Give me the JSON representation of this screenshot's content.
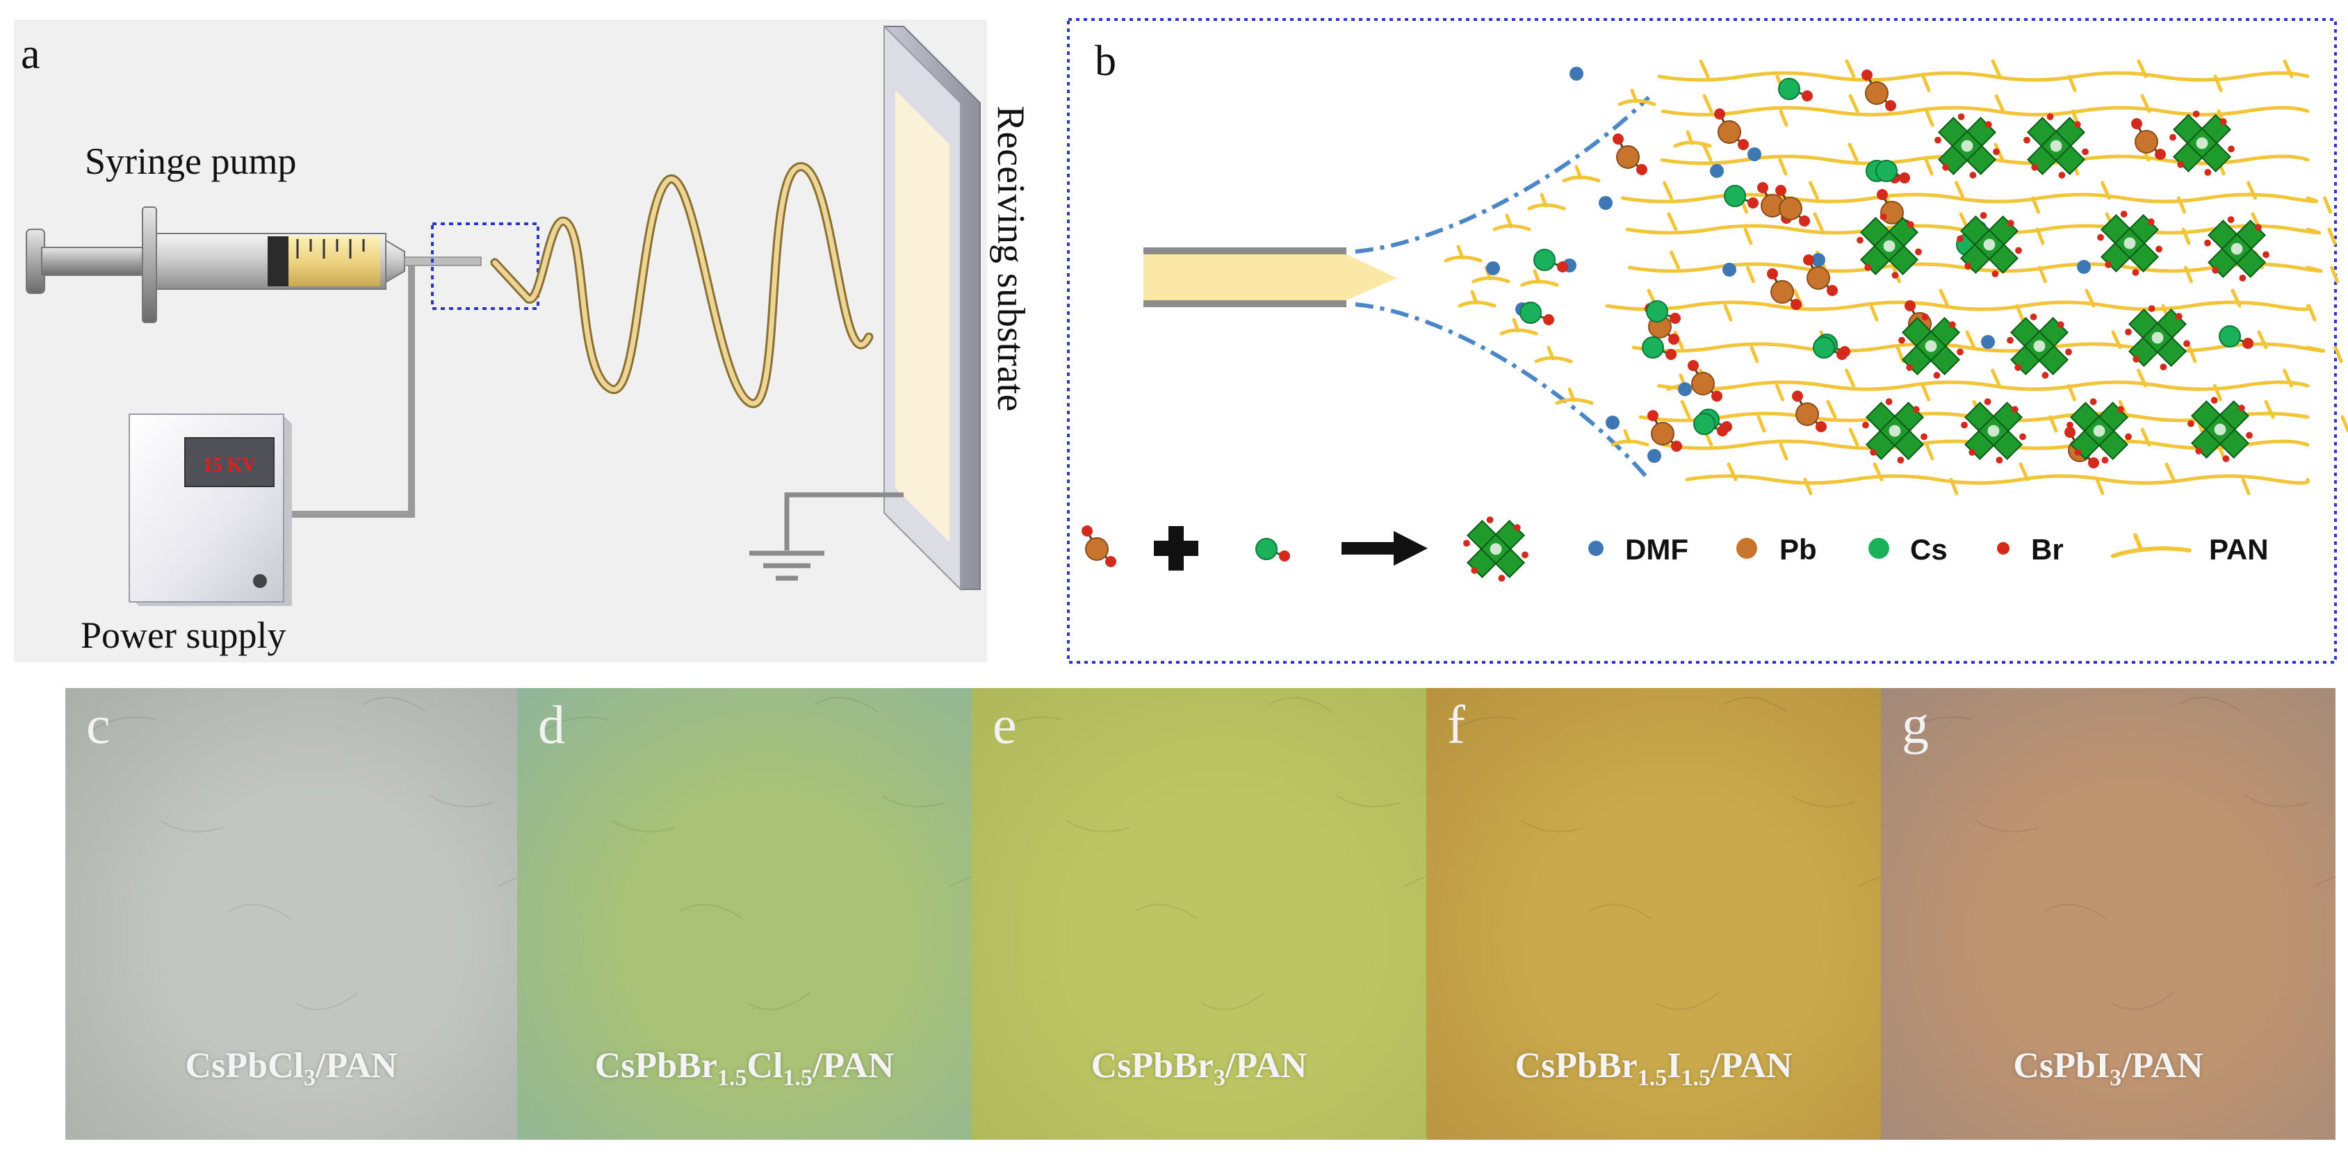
{
  "panel_a": {
    "letter": "a",
    "syringe_label": "Syringe pump",
    "power_label": "Power supply",
    "display": "15 KV",
    "substrate_label": "Receiving substrate"
  },
  "panel_b": {
    "letter": "b",
    "legend": {
      "dmf": "DMF",
      "pb": "Pb",
      "cs": "Cs",
      "br": "Br",
      "pan": "PAN"
    }
  },
  "photos": [
    {
      "letter": "c",
      "formula": "CsPbCl",
      "sub1": "3",
      "mid": "",
      "sub2": "",
      "suffix": "/PAN",
      "color_main": "#c3c6c0",
      "color_edge": "#a9aeaa"
    },
    {
      "letter": "d",
      "formula": "CsPbBr",
      "sub1": "1.5",
      "mid": "Cl",
      "sub2": "1.5",
      "suffix": "/PAN",
      "color_main": "#a9c276",
      "color_edge": "#8fb59a"
    },
    {
      "letter": "e",
      "formula": "CsPbBr",
      "sub1": "3",
      "mid": "",
      "sub2": "",
      "suffix": "/PAN",
      "color_main": "#bcc563",
      "color_edge": "#aeb85a"
    },
    {
      "letter": "f",
      "formula": "CsPbBr",
      "sub1": "1.5",
      "mid": "I",
      "sub2": "1.5",
      "suffix": "/PAN",
      "color_main": "#c9a94c",
      "color_edge": "#b7923f"
    },
    {
      "letter": "g",
      "formula": "CsPbI",
      "sub1": "3",
      "mid": "",
      "sub2": "",
      "suffix": "/PAN",
      "color_main": "#bf9470",
      "color_edge": "#a1897a"
    }
  ],
  "colors": {
    "dmf": "#3e78b4",
    "pb": "#c9742c",
    "cs": "#19b25a",
    "br": "#d42a1c",
    "pan": "#f2c437",
    "perovskite": "#1f9a2c",
    "frame": "#2b37c9"
  }
}
